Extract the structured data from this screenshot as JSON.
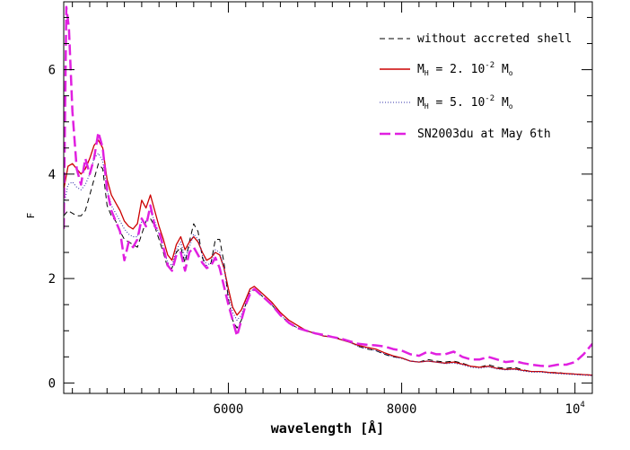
{
  "chart_data": {
    "type": "line",
    "title": "",
    "xlabel": "wavelength [Å]",
    "ylabel": "F",
    "xlim": [
      4100,
      10200
    ],
    "ylim": [
      -0.2,
      7.3
    ],
    "x_ticks": [
      {
        "value": 6000,
        "label": "6000"
      },
      {
        "value": 8000,
        "label": "8000"
      },
      {
        "value": 10000,
        "label": "10",
        "exponent": "4"
      }
    ],
    "y_ticks": [
      {
        "value": 0,
        "label": "0"
      },
      {
        "value": 2,
        "label": "2"
      },
      {
        "value": 4,
        "label": "4"
      },
      {
        "value": 6,
        "label": "6"
      }
    ],
    "legend": {
      "placement": "top-right",
      "entries": [
        {
          "text": "without accreted shell"
        },
        {
          "prefix": "M",
          "sub": "H",
          "mid": " = 2. 10",
          "sup": "-2",
          "post": " M",
          "post_sub": "o"
        },
        {
          "prefix": "M",
          "sub": "H",
          "mid": " = 5. 10",
          "sup": "-2",
          "post": " M",
          "post_sub": "o"
        },
        {
          "text": "SN2003du at May 6th"
        }
      ]
    },
    "series": [
      {
        "name": "without accreted shell",
        "color": "#000000",
        "style": "dashed",
        "x": [
          4100,
          4150,
          4200,
          4250,
          4300,
          4350,
          4400,
          4450,
          4500,
          4550,
          4600,
          4650,
          4700,
          4750,
          4800,
          4850,
          4900,
          4950,
          5000,
          5050,
          5100,
          5150,
          5200,
          5250,
          5300,
          5350,
          5400,
          5450,
          5500,
          5550,
          5600,
          5650,
          5700,
          5750,
          5800,
          5850,
          5900,
          5950,
          6000,
          6050,
          6100,
          6150,
          6200,
          6250,
          6300,
          6400,
          6500,
          6600,
          6700,
          6800,
          6900,
          7000,
          7100,
          7200,
          7300,
          7400,
          7500,
          7600,
          7700,
          7800,
          7900,
          8000,
          8100,
          8200,
          8300,
          8400,
          8500,
          8600,
          8700,
          8800,
          8900,
          9000,
          9100,
          9200,
          9300,
          9400,
          9500,
          9600,
          9700,
          9800,
          9900,
          10000,
          10100,
          10200
        ],
        "values": [
          3.2,
          3.3,
          3.25,
          3.2,
          3.2,
          3.3,
          3.6,
          3.9,
          4.2,
          4.1,
          3.4,
          3.2,
          3.1,
          2.9,
          2.75,
          2.7,
          2.65,
          2.6,
          2.85,
          3.1,
          3.15,
          3.0,
          2.75,
          2.5,
          2.2,
          2.2,
          2.5,
          2.6,
          2.3,
          2.7,
          3.05,
          2.9,
          2.4,
          2.2,
          2.3,
          2.75,
          2.75,
          2.3,
          1.6,
          1.2,
          1.05,
          1.2,
          1.5,
          1.75,
          1.8,
          1.65,
          1.5,
          1.3,
          1.15,
          1.05,
          1.0,
          0.95,
          0.9,
          0.88,
          0.85,
          0.8,
          0.7,
          0.65,
          0.62,
          0.55,
          0.5,
          0.48,
          0.42,
          0.4,
          0.45,
          0.42,
          0.4,
          0.42,
          0.38,
          0.32,
          0.3,
          0.35,
          0.3,
          0.28,
          0.3,
          0.25,
          0.22,
          0.22,
          0.2,
          0.2,
          0.18,
          0.17,
          0.16,
          0.15
        ]
      },
      {
        "name": "M_H = 2. 10^-2 M_o",
        "color": "#cc0000",
        "style": "solid",
        "x": [
          4100,
          4150,
          4200,
          4250,
          4300,
          4350,
          4400,
          4450,
          4500,
          4550,
          4600,
          4650,
          4700,
          4750,
          4800,
          4850,
          4900,
          4950,
          5000,
          5050,
          5100,
          5150,
          5200,
          5250,
          5300,
          5350,
          5400,
          5450,
          5500,
          5550,
          5600,
          5650,
          5700,
          5750,
          5800,
          5850,
          5900,
          5950,
          6000,
          6050,
          6100,
          6150,
          6200,
          6250,
          6300,
          6400,
          6500,
          6600,
          6700,
          6800,
          6900,
          7000,
          7100,
          7200,
          7300,
          7400,
          7500,
          7600,
          7700,
          7800,
          7900,
          8000,
          8100,
          8200,
          8300,
          8400,
          8500,
          8600,
          8700,
          8800,
          8900,
          9000,
          9100,
          9200,
          9300,
          9400,
          9500,
          9600,
          9700,
          9800,
          9900,
          10000,
          10100,
          10200
        ],
        "values": [
          3.7,
          4.15,
          4.2,
          4.1,
          4.0,
          4.1,
          4.3,
          4.55,
          4.65,
          4.5,
          3.9,
          3.6,
          3.45,
          3.3,
          3.1,
          3.0,
          2.95,
          3.05,
          3.5,
          3.35,
          3.6,
          3.3,
          3.0,
          2.75,
          2.45,
          2.35,
          2.65,
          2.8,
          2.55,
          2.7,
          2.8,
          2.7,
          2.5,
          2.35,
          2.4,
          2.5,
          2.45,
          2.2,
          1.8,
          1.45,
          1.3,
          1.4,
          1.6,
          1.8,
          1.85,
          1.7,
          1.55,
          1.35,
          1.2,
          1.1,
          1.0,
          0.95,
          0.9,
          0.88,
          0.83,
          0.78,
          0.72,
          0.68,
          0.65,
          0.58,
          0.52,
          0.48,
          0.42,
          0.4,
          0.42,
          0.4,
          0.38,
          0.4,
          0.36,
          0.32,
          0.3,
          0.32,
          0.28,
          0.26,
          0.27,
          0.24,
          0.22,
          0.22,
          0.2,
          0.19,
          0.18,
          0.17,
          0.16,
          0.15
        ]
      },
      {
        "name": "M_H = 5. 10^-2 M_o",
        "color": "#3333aa",
        "style": "dotted",
        "x": [
          4100,
          4150,
          4200,
          4250,
          4300,
          4350,
          4400,
          4450,
          4500,
          4550,
          4600,
          4650,
          4700,
          4750,
          4800,
          4850,
          4900,
          4950,
          5000,
          5050,
          5100,
          5150,
          5200,
          5250,
          5300,
          5350,
          5400,
          5450,
          5500,
          5550,
          5600,
          5650,
          5700,
          5750,
          5800,
          5850,
          5900,
          5950,
          6000,
          6050,
          6100,
          6150,
          6200,
          6250,
          6300,
          6400,
          6500,
          6600,
          6700,
          6800,
          6900,
          7000,
          7100,
          7200,
          7300,
          7400,
          7500,
          7600,
          7700,
          7800,
          7900,
          8000,
          8100,
          8200,
          8300,
          8400,
          8500,
          8600,
          8700,
          8800,
          8900,
          9000,
          9100,
          9200,
          9300,
          9400,
          9500,
          9600,
          9700,
          9800,
          9900,
          10000,
          10100,
          10200
        ],
        "values": [
          3.4,
          3.8,
          3.85,
          3.75,
          3.7,
          3.8,
          4.0,
          4.3,
          4.4,
          4.25,
          3.7,
          3.4,
          3.25,
          3.1,
          2.95,
          2.85,
          2.8,
          2.8,
          3.1,
          3.1,
          3.3,
          3.1,
          2.85,
          2.6,
          2.3,
          2.25,
          2.55,
          2.7,
          2.4,
          2.6,
          2.85,
          2.75,
          2.45,
          2.25,
          2.3,
          2.55,
          2.5,
          2.2,
          1.7,
          1.35,
          1.2,
          1.3,
          1.55,
          1.75,
          1.8,
          1.65,
          1.5,
          1.3,
          1.15,
          1.05,
          1.0,
          0.95,
          0.9,
          0.88,
          0.83,
          0.78,
          0.7,
          0.66,
          0.62,
          0.56,
          0.5,
          0.47,
          0.42,
          0.4,
          0.42,
          0.4,
          0.37,
          0.38,
          0.35,
          0.3,
          0.28,
          0.31,
          0.27,
          0.25,
          0.26,
          0.23,
          0.21,
          0.21,
          0.19,
          0.18,
          0.17,
          0.16,
          0.15,
          0.14
        ]
      },
      {
        "name": "SN2003du at May 6th",
        "color": "#e020e0",
        "style": "longdash",
        "x": [
          4100,
          4130,
          4160,
          4200,
          4250,
          4300,
          4350,
          4400,
          4450,
          4500,
          4550,
          4600,
          4650,
          4700,
          4750,
          4800,
          4850,
          4900,
          4950,
          5000,
          5050,
          5100,
          5150,
          5200,
          5250,
          5300,
          5350,
          5400,
          5450,
          5500,
          5550,
          5600,
          5650,
          5700,
          5750,
          5800,
          5850,
          5900,
          5950,
          6000,
          6050,
          6100,
          6150,
          6200,
          6250,
          6300,
          6400,
          6500,
          6600,
          6700,
          6800,
          6900,
          7000,
          7100,
          7200,
          7300,
          7400,
          7500,
          7600,
          7700,
          7800,
          7900,
          8000,
          8100,
          8200,
          8300,
          8400,
          8500,
          8600,
          8700,
          8800,
          8900,
          9000,
          9100,
          9200,
          9300,
          9400,
          9500,
          9600,
          9700,
          9800,
          9900,
          10000,
          10100,
          10200
        ],
        "values": [
          2.95,
          7.2,
          6.8,
          5.2,
          4.1,
          3.8,
          4.3,
          4.0,
          4.3,
          4.8,
          4.5,
          3.7,
          3.3,
          3.1,
          2.9,
          2.35,
          2.7,
          2.6,
          2.75,
          3.15,
          3.0,
          3.4,
          3.0,
          2.9,
          2.6,
          2.25,
          2.15,
          2.45,
          2.5,
          2.15,
          2.5,
          2.6,
          2.45,
          2.3,
          2.2,
          2.25,
          2.4,
          2.2,
          1.85,
          1.5,
          1.2,
          0.9,
          1.2,
          1.5,
          1.7,
          1.8,
          1.65,
          1.5,
          1.3,
          1.15,
          1.05,
          1.0,
          0.95,
          0.92,
          0.88,
          0.85,
          0.8,
          0.75,
          0.73,
          0.72,
          0.7,
          0.65,
          0.62,
          0.55,
          0.52,
          0.6,
          0.55,
          0.55,
          0.6,
          0.5,
          0.45,
          0.45,
          0.5,
          0.45,
          0.4,
          0.42,
          0.38,
          0.35,
          0.33,
          0.32,
          0.35,
          0.35,
          0.4,
          0.55,
          0.75
        ]
      }
    ]
  }
}
